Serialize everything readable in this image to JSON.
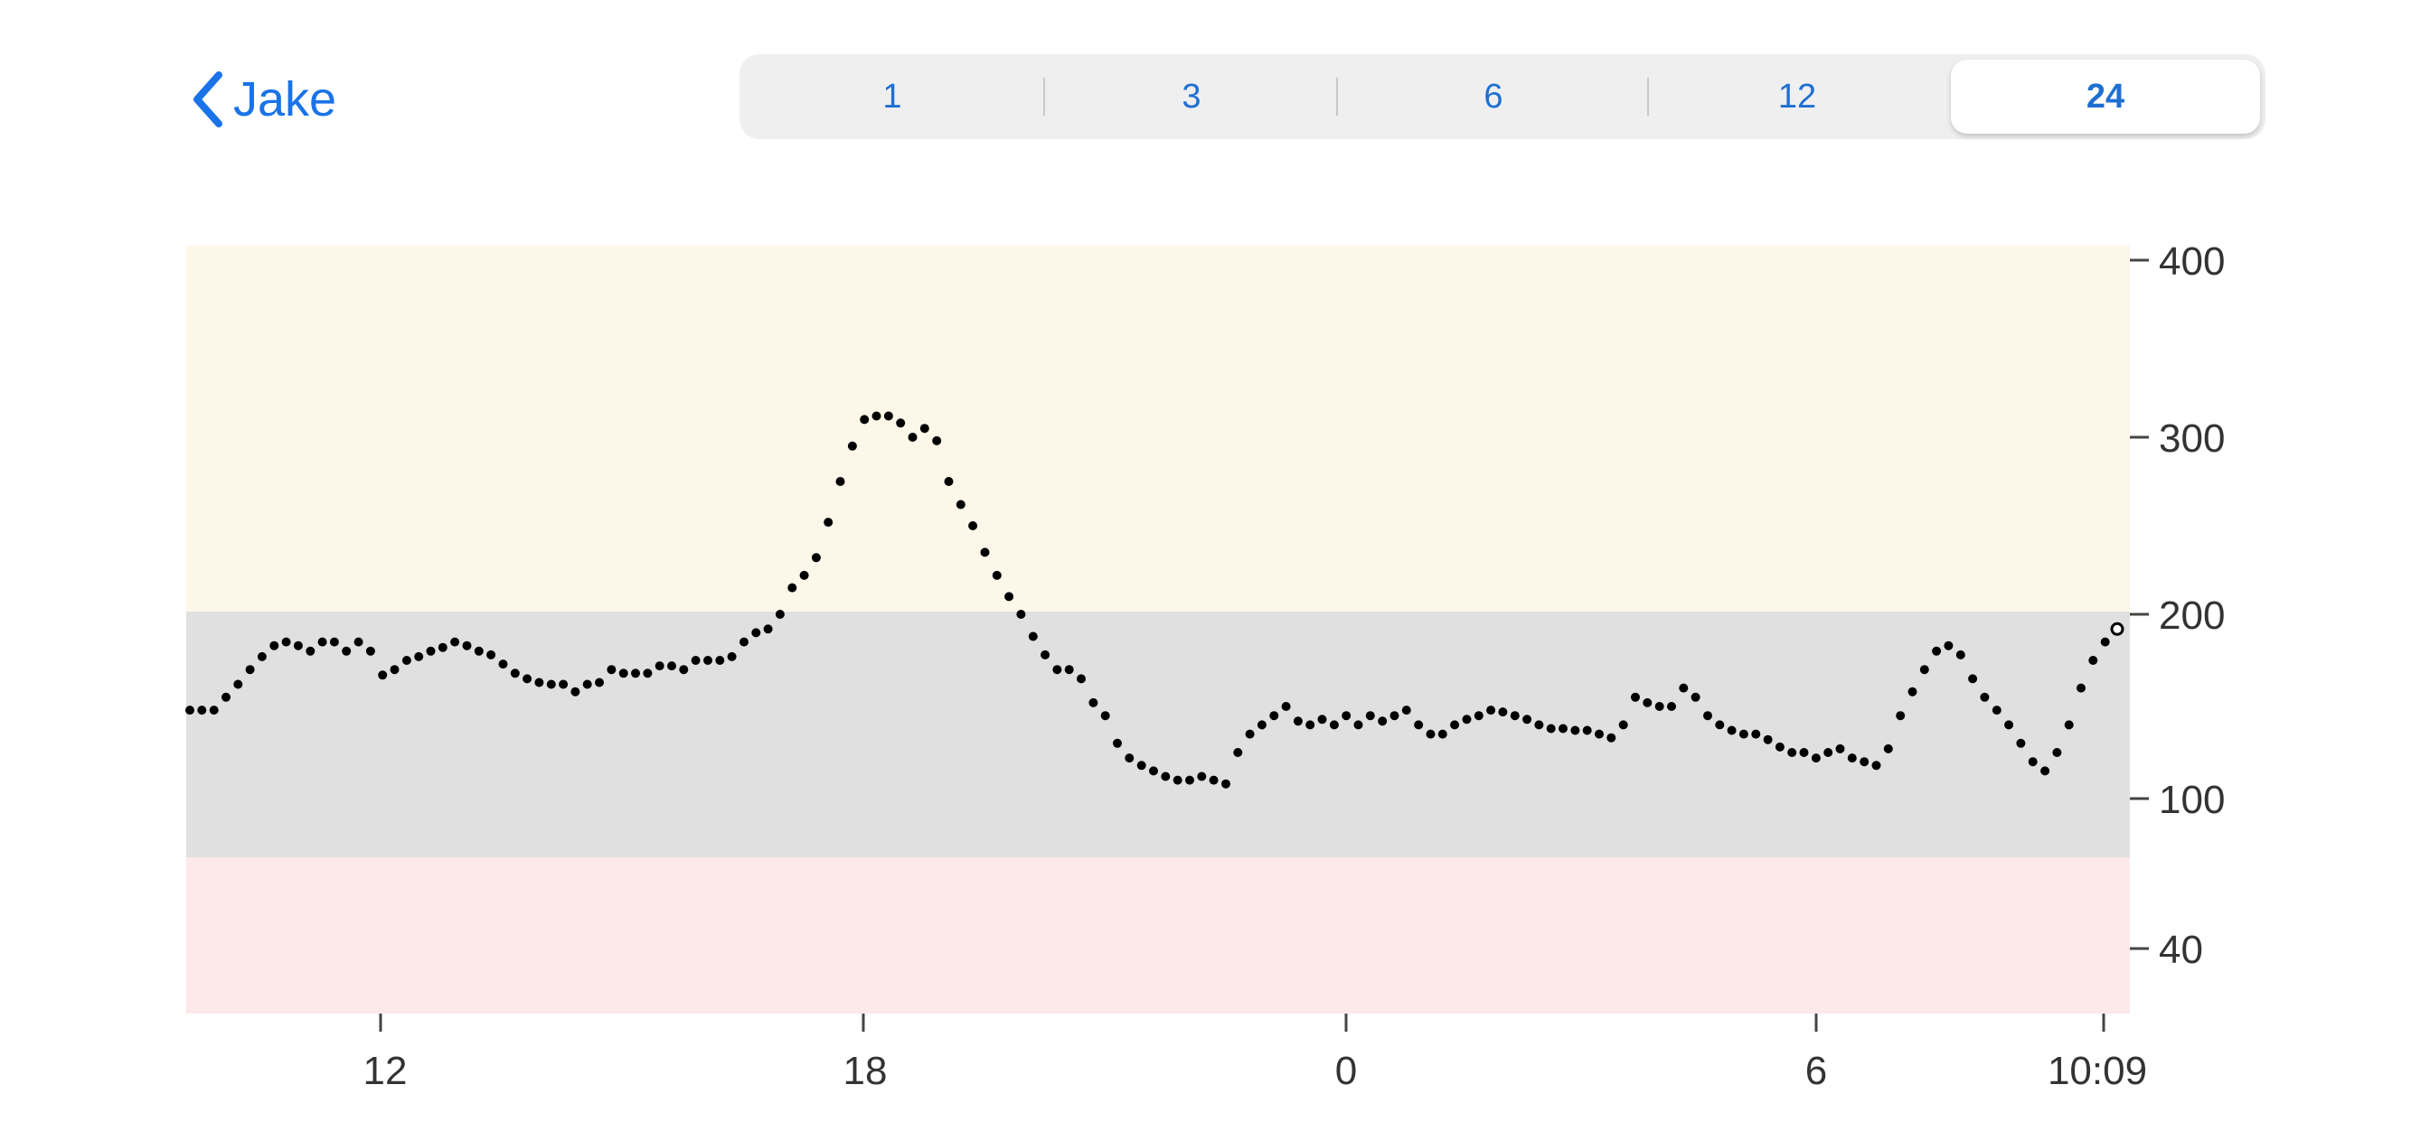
{
  "header": {
    "back_label": "Jake",
    "segments": [
      "1",
      "3",
      "6",
      "12",
      "24"
    ],
    "selected_segment": "24"
  },
  "colors": {
    "accent": "#1a73e8",
    "high_band": "#fdf7ea",
    "target_band": "#e0e0e0",
    "low_band": "#fde8ea"
  },
  "chart_data": {
    "type": "scatter",
    "title": "",
    "xlabel": "",
    "ylabel": "",
    "y_scale": "piecewise",
    "ylim": [
      0,
      400
    ],
    "y_ticks": [
      "400",
      "300",
      "200",
      "100",
      "40"
    ],
    "x_tick_labels": [
      "12",
      "18",
      "0",
      "6",
      "10:09"
    ],
    "bands": [
      {
        "name": "high",
        "from": 200,
        "to": 400
      },
      {
        "name": "target",
        "from": 70,
        "to": 200
      },
      {
        "name": "low",
        "from": 0,
        "to": 70
      }
    ],
    "x_range": [
      "09:39",
      "10:09"
    ],
    "interval_minutes": 5,
    "series": [
      {
        "values": [
          148,
          148,
          148,
          155,
          162,
          170,
          177,
          183,
          185,
          183,
          180,
          185,
          185,
          180,
          185,
          180,
          167,
          170,
          175,
          177,
          180,
          182,
          185,
          183,
          180,
          178,
          173,
          168,
          165,
          163,
          162,
          162,
          158,
          162,
          163,
          170,
          168,
          168,
          168,
          172,
          172,
          170,
          175,
          175,
          175,
          177,
          185,
          190,
          192,
          200,
          215,
          222,
          232,
          252,
          275,
          295,
          310,
          312,
          312,
          308,
          300,
          305,
          298,
          275,
          262,
          250,
          235,
          222,
          210,
          200,
          188,
          178,
          170,
          170,
          165,
          152,
          145,
          130,
          122,
          118,
          115,
          112,
          110,
          110,
          112,
          110,
          108,
          125,
          135,
          140,
          145,
          150,
          142,
          140,
          143,
          140,
          145,
          140,
          145,
          142,
          145,
          148,
          140,
          135,
          135,
          140,
          143,
          145,
          148,
          147,
          145,
          143,
          140,
          138,
          138,
          137,
          137,
          135,
          133,
          140,
          155,
          152,
          150,
          150,
          160,
          155,
          145,
          140,
          137,
          135,
          135,
          132,
          128,
          125,
          125,
          122,
          125,
          127,
          122,
          120,
          118,
          127,
          145,
          158,
          170,
          180,
          183,
          178,
          165,
          155,
          148,
          140,
          130,
          120,
          115,
          125,
          140,
          160,
          175,
          185,
          192
        ],
        "latest": 192
      }
    ]
  }
}
